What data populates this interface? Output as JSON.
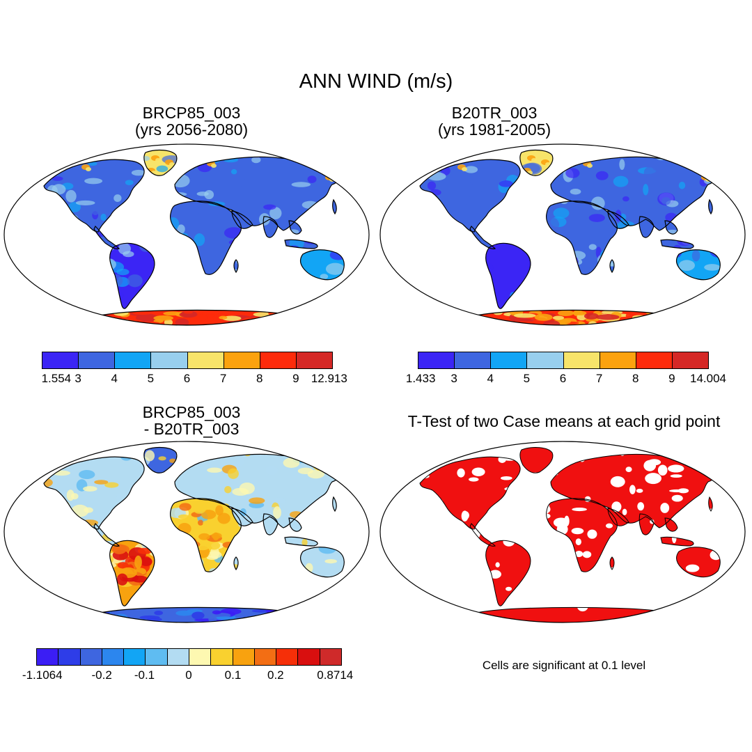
{
  "figure": {
    "title": "ANN WIND (m/s)",
    "panels": [
      {
        "title_lines": [
          "BRCP85_003",
          "(yrs 2056-2080)"
        ],
        "colorbar": {
          "colors": [
            "#3b25f5",
            "#3e66e0",
            "#12a5f5",
            "#98cfee",
            "#f7e46a",
            "#fba20f",
            "#fd2b0b",
            "#d52826"
          ],
          "labels": [
            "1.554",
            "3",
            "4",
            "5",
            "6",
            "7",
            "8",
            "9",
            "12.913"
          ]
        }
      },
      {
        "title_lines": [
          "B20TR_003",
          "(yrs 1981-2005)"
        ],
        "colorbar": {
          "colors": [
            "#3b25f5",
            "#3e66e0",
            "#12a5f5",
            "#98cfee",
            "#f7e46a",
            "#fba20f",
            "#fd2b0b",
            "#d52826"
          ],
          "labels": [
            "1.433",
            "3",
            "4",
            "5",
            "6",
            "7",
            "8",
            "9",
            "14.004"
          ]
        }
      },
      {
        "title_lines": [
          "BRCP85_003",
          "- B20TR_003"
        ],
        "colorbar": {
          "colors": [
            "#3b1ef5",
            "#2e3de8",
            "#3e66e0",
            "#2c86ee",
            "#12a5f5",
            "#5fbcf1",
            "#b3dcf2",
            "#fdf8b1",
            "#f9d12f",
            "#f8a20f",
            "#f36e14",
            "#f62f08",
            "#d90f0f",
            "#cf2a2a"
          ],
          "labels": [
            "-1.1064",
            "-0.2",
            "-0.1",
            "0",
            "0.1",
            "0.2",
            "0.8714"
          ]
        }
      },
      {
        "title_lines": [
          "T-Test of two Case means at each grid point"
        ],
        "note": "Cells are significant at 0.1 level"
      }
    ]
  }
}
